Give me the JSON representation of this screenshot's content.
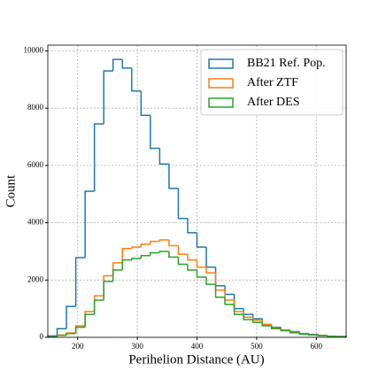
{
  "chart_data": {
    "type": "histogram_step",
    "xlabel": "Perihelion Distance (AU)",
    "ylabel": "Count",
    "bins": [
      150,
      165.625,
      181.25,
      196.875,
      212.5,
      228.125,
      243.75,
      259.375,
      275,
      290.625,
      306.25,
      321.875,
      337.5,
      353.125,
      368.75,
      384.375,
      400,
      415.625,
      431.25,
      446.875,
      462.5,
      478.125,
      493.75,
      509.375,
      525,
      540.625,
      556.25,
      571.875,
      587.5,
      603.125,
      618.75,
      634.375,
      650
    ],
    "series": [
      {
        "name": "BB21 Ref. Pop.",
        "color": "#1f77b4",
        "values": [
          50,
          300,
          1078,
          2780,
          5100,
          7450,
          9300,
          9700,
          9400,
          8600,
          7750,
          6600,
          6050,
          5200,
          4150,
          3650,
          3150,
          2450,
          1800,
          1500,
          1000,
          800,
          650,
          450,
          350,
          250,
          200,
          130,
          100,
          60,
          40,
          30
        ]
      },
      {
        "name": "After ZTF",
        "color": "#ff7f0e",
        "values": [
          20,
          80,
          150,
          400,
          900,
          1450,
          2150,
          2600,
          3100,
          3150,
          3250,
          3350,
          3400,
          3200,
          2900,
          2700,
          2450,
          2250,
          1650,
          1300,
          900,
          700,
          600,
          450,
          330,
          260,
          180,
          120,
          90,
          60,
          40,
          25
        ]
      },
      {
        "name": "After DES",
        "color": "#2ca02c",
        "values": [
          15,
          70,
          130,
          350,
          800,
          1300,
          1950,
          2350,
          2700,
          2750,
          2850,
          2950,
          3000,
          2800,
          2550,
          2350,
          2100,
          1850,
          1400,
          1150,
          800,
          620,
          520,
          400,
          300,
          230,
          160,
          110,
          80,
          55,
          35,
          20
        ]
      }
    ],
    "xlim": [
      150,
      650
    ],
    "ylim": [
      0,
      10200
    ],
    "xticks": [
      200,
      300,
      400,
      500,
      600
    ],
    "yticks": [
      0,
      2000,
      4000,
      6000,
      8000,
      10000
    ],
    "grid": true,
    "legend": "upper right"
  }
}
